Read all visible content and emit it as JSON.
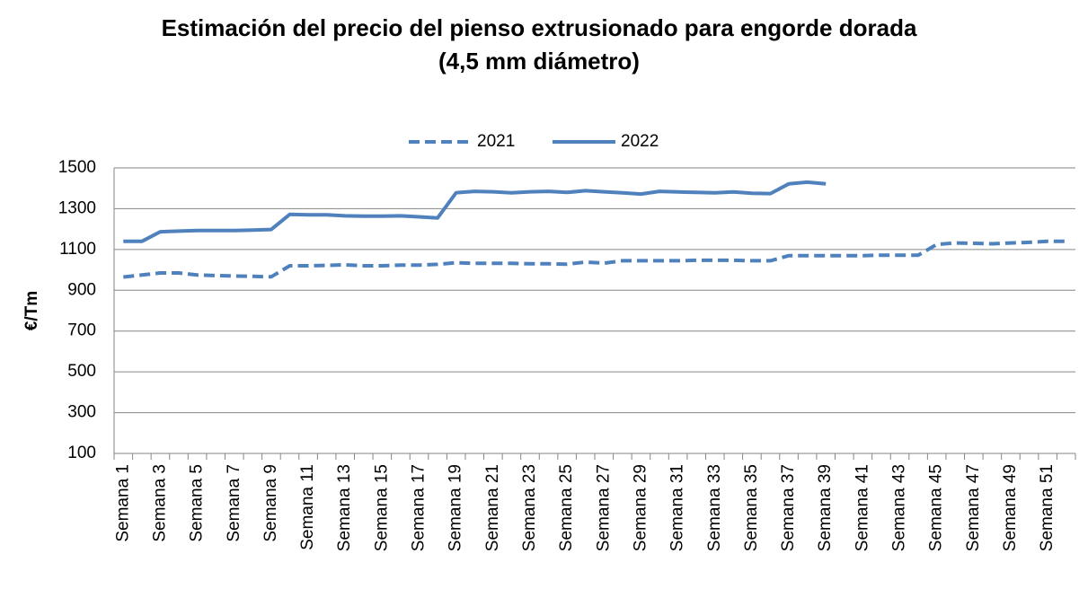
{
  "chart_data": {
    "type": "line",
    "title": [
      "Estimación del precio del pienso extrusionado para engorde dorada",
      "(4,5 mm diámetro)"
    ],
    "y_label": "€/Tm",
    "categories": [
      "Semana 1",
      null,
      "Semana 3",
      null,
      "Semana 5",
      null,
      "Semana 7",
      null,
      "Semana 9",
      null,
      "Semana 11",
      null,
      "Semana 13",
      null,
      "Semana 15",
      null,
      "Semana 17",
      null,
      "Semana 19",
      null,
      "Semana 21",
      null,
      "Semana 23",
      null,
      "Semana 25",
      null,
      "Semana 27",
      null,
      "Semana 29",
      null,
      "Semana 31",
      null,
      "Semana 33",
      null,
      "Semana 35",
      null,
      "Semana 37",
      null,
      "Semana 39",
      null,
      "Semana 41",
      null,
      "Semana 43",
      null,
      "Semana 45",
      null,
      "Semana 47",
      null,
      "Semana 49",
      null,
      "Semana 51",
      null
    ],
    "series": [
      {
        "name": "2021",
        "color": "#4f81bd",
        "dash": true,
        "values": [
          965,
          975,
          985,
          985,
          975,
          972,
          970,
          968,
          966,
          1020,
          1020,
          1022,
          1025,
          1020,
          1020,
          1023,
          1023,
          1027,
          1035,
          1032,
          1032,
          1032,
          1030,
          1030,
          1028,
          1038,
          1033,
          1045,
          1045,
          1045,
          1045,
          1047,
          1047,
          1047,
          1045,
          1045,
          1070,
          1070,
          1070,
          1070,
          1070,
          1072,
          1072,
          1072,
          1125,
          1132,
          1130,
          1128,
          1132,
          1135,
          1140,
          1140
        ]
      },
      {
        "name": "2022",
        "color": "#4f81bd",
        "dash": false,
        "values": [
          1140,
          1140,
          1187,
          1190,
          1193,
          1193,
          1193,
          1195,
          1198,
          1272,
          1270,
          1270,
          1265,
          1263,
          1263,
          1265,
          1260,
          1255,
          1378,
          1385,
          1383,
          1378,
          1383,
          1385,
          1380,
          1388,
          1383,
          1378,
          1372,
          1385,
          1382,
          1380,
          1378,
          1382,
          1376,
          1374,
          1422,
          1430,
          1422,
          null,
          null,
          null,
          null,
          null,
          null,
          null,
          null,
          null,
          null,
          null,
          null,
          null
        ]
      }
    ],
    "ylim": [
      100,
      1500
    ],
    "yticks": [
      100,
      300,
      500,
      700,
      900,
      1100,
      1300,
      1500
    ],
    "grid": true,
    "legend": "top"
  }
}
